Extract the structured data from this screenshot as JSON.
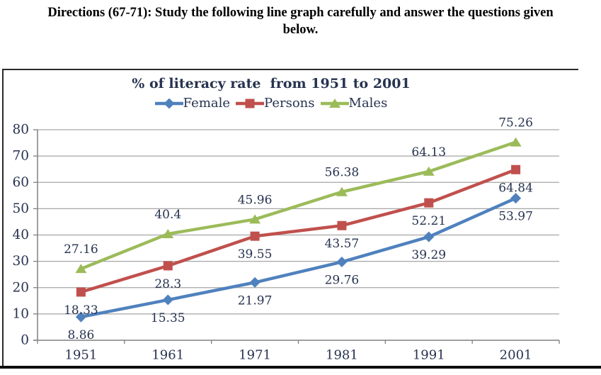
{
  "heading": {
    "line1": "Directions (67-71): Study the following line graph carefully and answer the questions given",
    "line2": "below."
  },
  "chart_data": {
    "type": "line",
    "title": "% of literacy rate  from 1951 to 2001",
    "categories": [
      "1951",
      "1961",
      "1971",
      "1981",
      "1991",
      "2001"
    ],
    "y_axis": {
      "min": 0,
      "max": 80,
      "step": 10,
      "ticks": [
        "0",
        "10",
        "20",
        "30",
        "40",
        "50",
        "60",
        "70",
        "80"
      ]
    },
    "series": [
      {
        "name": "Female",
        "color": "#4F81BD",
        "marker": "diamond",
        "values": [
          8.86,
          15.35,
          21.97,
          29.76,
          39.29,
          53.97
        ],
        "labels": [
          "8.86",
          "15.35",
          "21.97",
          "29.76",
          "39.29",
          "53.97"
        ],
        "label_position": "below"
      },
      {
        "name": "Persons",
        "color": "#C0504D",
        "marker": "square",
        "values": [
          18.33,
          28.3,
          39.55,
          43.57,
          52.21,
          64.84
        ],
        "labels": [
          "18.33",
          "28.3",
          "39.55",
          "43.57",
          "52.21",
          "64.84"
        ],
        "label_position": "below"
      },
      {
        "name": "Males",
        "color": "#9BBB59",
        "marker": "triangle",
        "values": [
          27.16,
          40.4,
          45.96,
          56.38,
          64.13,
          75.26
        ],
        "labels": [
          "27.16",
          "40.4",
          "45.96",
          "56.38",
          "64.13",
          "75.26"
        ],
        "label_position": "above"
      }
    ],
    "legend_position": "top",
    "grid": true,
    "colors": {
      "gridline": "#A6A6A6",
      "axis": "#808080",
      "chart_text": "#26334F",
      "heading_text": "#000000"
    }
  }
}
